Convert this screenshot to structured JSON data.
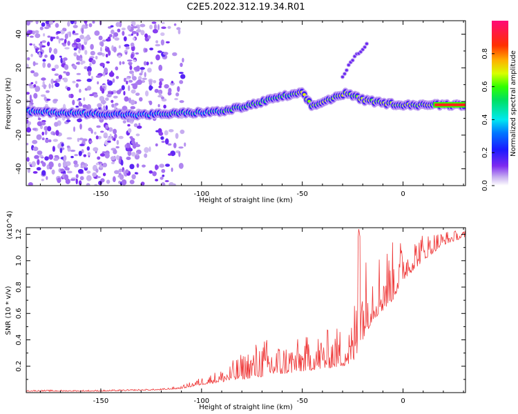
{
  "figure": {
    "title": "C2E5.2022.312.19.34.R01"
  },
  "chart_data": [
    {
      "type": "heatmap",
      "title": "",
      "xlabel": "Height of straight line (km)",
      "ylabel": "Frequency (Hz)",
      "xlim": [
        -187,
        31
      ],
      "ylim": [
        -50,
        48
      ],
      "xticks": [
        -150,
        -100,
        -50,
        0
      ],
      "yticks": [
        -40,
        -20,
        0,
        20,
        40
      ],
      "colorbar": {
        "label": "Normalized spectral amplitude",
        "range": [
          0,
          1
        ],
        "ticks": [
          0.0,
          0.2,
          0.4,
          0.6,
          0.8
        ],
        "colormap": "rainbow (purple-blue-cyan-green-yellow-orange-red-magenta)"
      },
      "features": {
        "noise_region_x": [
          -187,
          -108
        ],
        "main_trace": [
          [
            -187,
            -6
          ],
          [
            -160,
            -7
          ],
          [
            -130,
            -8
          ],
          [
            -110,
            -7
          ],
          [
            -90,
            -6
          ],
          [
            -75,
            -2
          ],
          [
            -60,
            3
          ],
          [
            -50,
            5
          ],
          [
            -45,
            -3
          ],
          [
            -35,
            2
          ],
          [
            -28,
            5
          ],
          [
            -20,
            1
          ],
          [
            -10,
            -1
          ],
          [
            0,
            -2
          ],
          [
            15,
            -2
          ],
          [
            31,
            -2
          ]
        ],
        "upper_branch": [
          [
            -30,
            15
          ],
          [
            -25,
            25
          ],
          [
            -18,
            34
          ]
        ],
        "strongest_segment_x": [
          15,
          31
        ]
      }
    },
    {
      "type": "line",
      "title": "",
      "xlabel": "Height of straight line (km)",
      "ylabel": "SNR (10 * v/v)",
      "y_multiplier": "(x10^4)",
      "xlim": [
        -187,
        31
      ],
      "ylim": [
        0,
        1.25
      ],
      "xticks": [
        -150,
        -100,
        -50,
        0
      ],
      "yticks": [
        0.2,
        0.4,
        0.6,
        0.8,
        1.0,
        1.2
      ],
      "series": [
        {
          "name": "",
          "color": "#ee3333",
          "x": [
            -187,
            -150,
            -120,
            -110,
            -100,
            -90,
            -80,
            -70,
            -60,
            -50,
            -40,
            -30,
            -25,
            -22,
            -20,
            -15,
            -10,
            -5,
            0,
            10,
            20,
            31
          ],
          "baseline": [
            0.01,
            0.01,
            0.02,
            0.03,
            0.06,
            0.08,
            0.1,
            0.12,
            0.14,
            0.16,
            0.18,
            0.2,
            0.22,
            0.3,
            0.4,
            0.55,
            0.62,
            0.7,
            0.85,
            1.0,
            1.12,
            1.18
          ],
          "peak": [
            0.02,
            0.02,
            0.03,
            0.05,
            0.12,
            0.18,
            0.3,
            0.43,
            0.38,
            0.42,
            0.47,
            0.52,
            0.55,
            1.24,
            1.05,
            1.1,
            1.12,
            1.15,
            1.18,
            1.22,
            1.23,
            1.23
          ]
        }
      ]
    }
  ]
}
